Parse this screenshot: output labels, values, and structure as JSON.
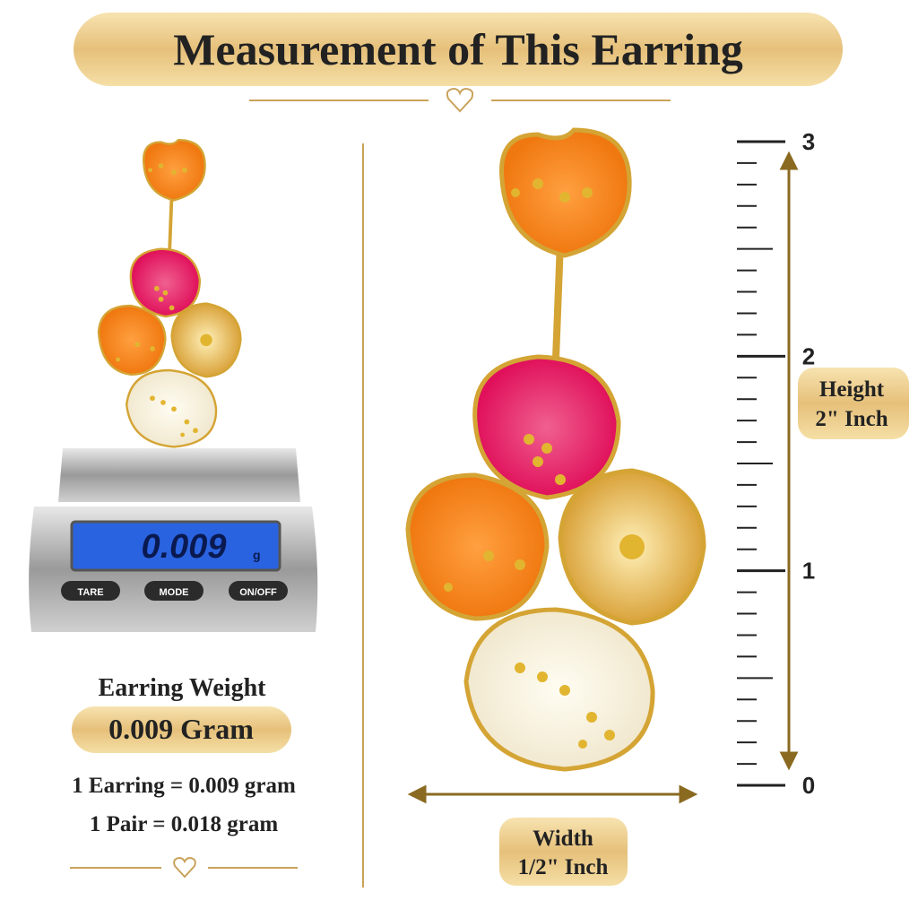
{
  "header": {
    "title": "Measurement of This Earring"
  },
  "scale": {
    "display": "0.009",
    "unit": "g",
    "buttons": [
      "TARE",
      "MODE",
      "ON/OFF"
    ]
  },
  "weight": {
    "label": "Earring Weight",
    "value": "0.009 Gram",
    "lines": [
      "1 Earring = 0.009 gram",
      "1 Pair = 0.018 gram"
    ]
  },
  "ruler": {
    "ticks": [
      0,
      1,
      2,
      3
    ]
  },
  "height": {
    "label": "Height",
    "value": "2\" Inch"
  },
  "width": {
    "label": "Width",
    "value": "1/2\" Inch"
  }
}
